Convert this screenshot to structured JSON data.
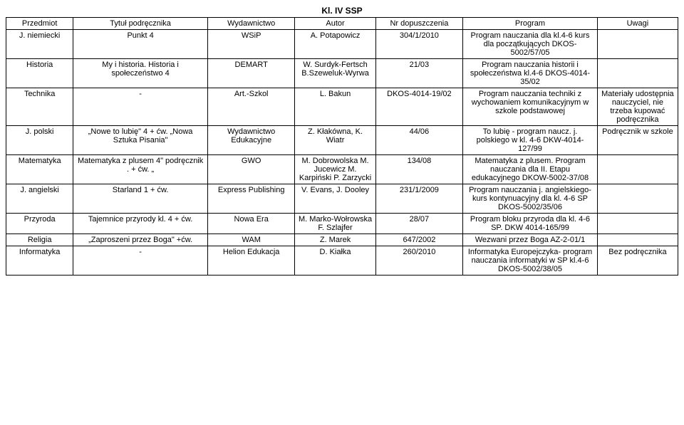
{
  "title": "Kl. IV SSP",
  "columns": [
    "Przedmiot",
    "Tytuł podręcznika",
    "Wydawnictwo",
    "Autor",
    "Nr dopuszczenia",
    "Program",
    "Uwagi"
  ],
  "rows": [
    {
      "przedmiot": "J. niemiecki",
      "tytul": "Punkt 4",
      "wydawnictwo": "WSiP",
      "autor": "A. Potapowicz",
      "nr": "304/1/2010",
      "program": "Program nauczania dla kl.4-6 kurs dla początkujących DKOS-5002/57/05",
      "uwagi": ""
    },
    {
      "przedmiot": "Historia",
      "tytul": "My i historia. Historia i społeczeństwo 4",
      "wydawnictwo": "DEMART",
      "autor": "W. Surdyk-Fertsch B.Szeweluk-Wyrwa",
      "nr": "21/03",
      "program": "Program nauczania historii i społeczeństwa kl.4-6 DKOS-4014-35/02",
      "uwagi": ""
    },
    {
      "przedmiot": "Technika",
      "tytul": "-",
      "wydawnictwo": "Art.-Szkol",
      "autor": "L. Bakun",
      "nr": "DKOS-4014-19/02",
      "program": "Program nauczania techniki z wychowaniem komunikacyjnym w szkole podstawowej",
      "uwagi": "Materiały udostępnia nauczyciel, nie trzeba kupować podręcznika"
    },
    {
      "przedmiot": "J. polski",
      "tytul": "„Nowe to lubię\" 4 + ćw. „Nowa Sztuka Pisania\"",
      "wydawnictwo": "Wydawnictwo Edukacyjne",
      "autor": "Z. Kłakówna, K. Wiatr",
      "nr": "44/06",
      "program": "To lubię - program naucz. j. polskiego w kl. 4-6 DKW-4014-127/99",
      "uwagi": "Podręcznik w szkole"
    },
    {
      "przedmiot": "Matematyka",
      "tytul": "Matematyka z plusem 4\" podręcznik . + ćw. „",
      "wydawnictwo": "GWO",
      "autor": "M. Dobrowolska M. Jucewicz M. Karpiński P. Zarzycki",
      "nr": "134/08",
      "program": "Matematyka z plusem. Program nauczania dla II. Etapu edukacyjnego DKOW-5002-37/08",
      "uwagi": ""
    },
    {
      "przedmiot": "J. angielski",
      "tytul": "Starland 1 + ćw.",
      "wydawnictwo": "Express Publishing",
      "autor": "V. Evans, J. Dooley",
      "nr": "231/1/2009",
      "program": "Program nauczania j. angielskiego- kurs kontynuacyjny dla kl. 4-6 SP DKOS-5002/35/06",
      "uwagi": ""
    },
    {
      "przedmiot": "Przyroda",
      "tytul": "Tajemnice przyrody kl. 4 + ćw.",
      "wydawnictwo": "Nowa Era",
      "autor": "M. Marko-Wołrowska F. Szlajfer",
      "nr": "28/07",
      "program": "Program bloku przyroda dla kl. 4-6 SP. DKW 4014-165/99",
      "uwagi": ""
    },
    {
      "przedmiot": "Religia",
      "tytul": "„Zaproszeni przez Boga\" +ćw.",
      "wydawnictwo": "WAM",
      "autor": "Z. Marek",
      "nr": "647/2002",
      "program": "Wezwani przez Boga AZ-2-01/1",
      "uwagi": ""
    },
    {
      "przedmiot": "Informatyka",
      "tytul": "-",
      "wydawnictwo": "Helion Edukacja",
      "autor": "D. Kiałka",
      "nr": "260/2010",
      "program": "Informatyka Europejczyka- program nauczania informatyki w SP kl.4-6 DKOS-5002/38/05",
      "uwagi": "Bez podręcznika"
    }
  ]
}
